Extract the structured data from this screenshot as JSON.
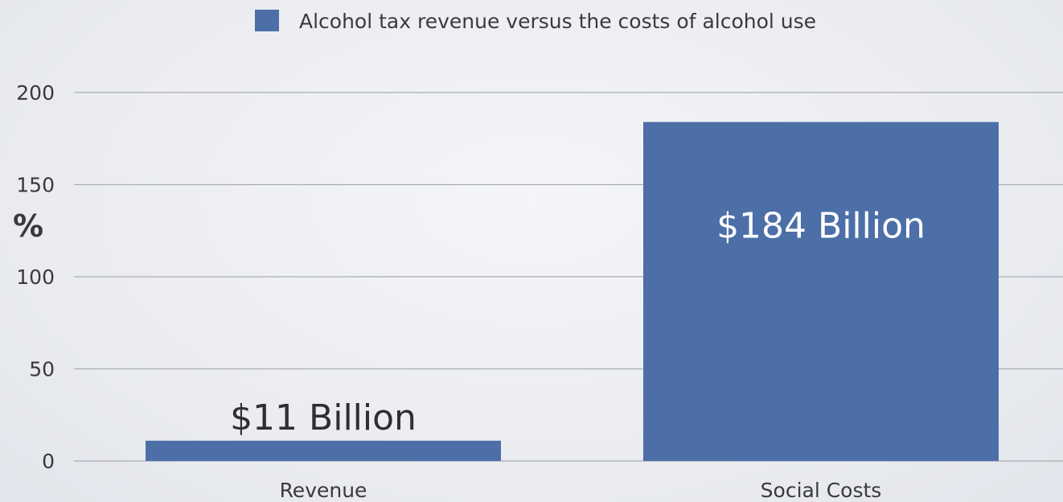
{
  "chart_data": {
    "type": "bar",
    "legend": {
      "label": "Alcohol tax revenue versus the costs of alcohol use",
      "placement": "top-center",
      "color": "#4d6fa8"
    },
    "ylabel": "%",
    "xlabel": "",
    "categories": [
      "Revenue",
      "Social Costs"
    ],
    "series": [
      {
        "name": "Alcohol tax revenue versus the costs of alcohol use",
        "values": [
          11,
          184
        ],
        "data_labels": [
          "$11 Billion",
          "$184 Billion"
        ]
      }
    ],
    "ylim": [
      0,
      200
    ],
    "yticks": [
      0,
      50,
      100,
      150,
      200
    ],
    "ytick_labels": [
      "0",
      "50",
      "100",
      "150",
      "200"
    ],
    "grid": true,
    "colors": {
      "bar": "#4d6fa8",
      "gridline": "#a9acb2",
      "text": "#3a3a3a",
      "label_on_bar": "#ffffff",
      "label_above_bar": "#2f2f2f"
    }
  }
}
